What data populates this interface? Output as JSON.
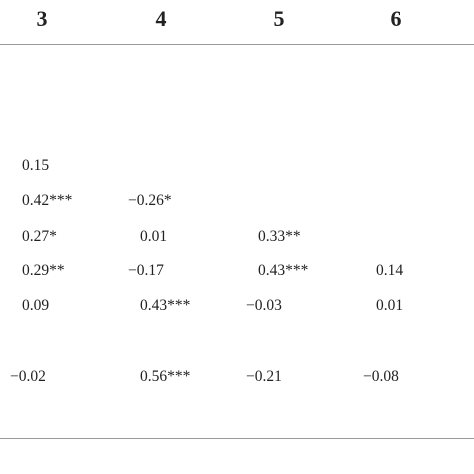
{
  "table": {
    "headers": [
      "3",
      "4",
      "5",
      "6"
    ],
    "rows": [
      [
        "",
        "",
        "",
        ""
      ],
      [
        "",
        "",
        "",
        ""
      ],
      [
        "0.15",
        "",
        "",
        ""
      ],
      [
        "0.42***",
        "−0.26*",
        "",
        ""
      ],
      [
        "0.27*",
        "0.01",
        "0.33**",
        ""
      ],
      [
        "0.29**",
        "−0.17",
        "0.43***",
        "0.14"
      ],
      [
        "0.09",
        "0.43***",
        "−0.03",
        "0.01"
      ],
      [
        "−0.02",
        "0.56***",
        "−0.21",
        "−0.08"
      ]
    ]
  }
}
